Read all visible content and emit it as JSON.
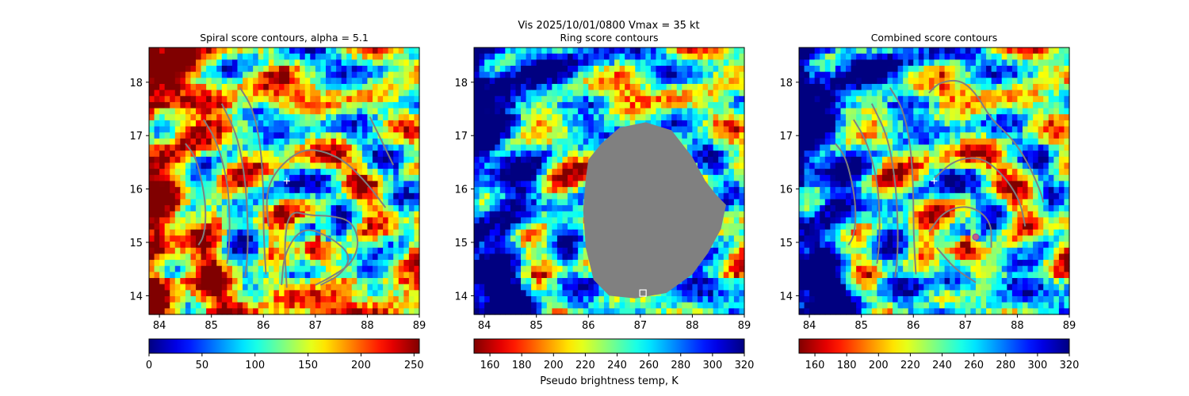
{
  "figure": {
    "title": "Vis  2025/10/01/0800    Vmax = 35 kt",
    "colormap": "jet"
  },
  "chart_data": [
    {
      "type": "heatmap",
      "title": "Spiral score contours, alpha =  5.1",
      "xlim": [
        83.8,
        89.0
      ],
      "ylim": [
        13.65,
        18.65
      ],
      "xticks": [
        "84",
        "85",
        "86",
        "87",
        "88",
        "89"
      ],
      "yticks": [
        "14",
        "15",
        "16",
        "17",
        "18"
      ],
      "xtick_values": [
        84,
        85,
        86,
        87,
        88,
        89
      ],
      "ytick_values": [
        14,
        15,
        16,
        17,
        18
      ],
      "colormap_reversed": false,
      "colorbar": {
        "range": [
          0,
          255
        ],
        "ticks": [
          "0",
          "50",
          "100",
          "150",
          "200",
          "250"
        ],
        "tick_values": [
          0,
          50,
          100,
          150,
          200,
          250
        ],
        "label": ""
      },
      "contour_color": "#808080",
      "contours": [
        [
          [
            84.5,
            16.85
          ],
          [
            84.7,
            16.6
          ],
          [
            84.85,
            16.0
          ],
          [
            84.9,
            15.5
          ],
          [
            84.85,
            15.1
          ],
          [
            84.75,
            14.95
          ]
        ],
        [
          [
            84.85,
            17.3
          ],
          [
            85.1,
            16.9
          ],
          [
            85.3,
            16.2
          ],
          [
            85.35,
            15.6
          ],
          [
            85.35,
            15.0
          ],
          [
            85.3,
            14.6
          ]
        ],
        [
          [
            85.2,
            17.6
          ],
          [
            85.5,
            17.0
          ],
          [
            85.65,
            16.2
          ],
          [
            85.7,
            15.4
          ],
          [
            85.7,
            14.8
          ],
          [
            85.65,
            14.35
          ]
        ],
        [
          [
            85.55,
            17.9
          ],
          [
            85.8,
            17.5
          ],
          [
            85.95,
            16.8
          ],
          [
            86.0,
            16.0
          ],
          [
            86.0,
            15.2
          ],
          [
            86.05,
            14.4
          ]
        ],
        [
          [
            86.1,
            15.3
          ],
          [
            86.05,
            15.8
          ],
          [
            86.15,
            16.2
          ],
          [
            86.45,
            16.55
          ],
          [
            86.8,
            16.75
          ],
          [
            87.2,
            16.7
          ],
          [
            87.6,
            16.5
          ],
          [
            88.0,
            16.1
          ],
          [
            88.35,
            15.65
          ]
        ],
        [
          [
            86.45,
            14.15
          ],
          [
            86.4,
            15.0
          ],
          [
            86.5,
            15.6
          ],
          [
            86.9,
            15.5
          ],
          [
            87.3,
            15.5
          ],
          [
            87.7,
            15.4
          ],
          [
            87.85,
            15.0
          ],
          [
            87.7,
            14.6
          ],
          [
            87.3,
            14.35
          ],
          [
            87.0,
            14.2
          ]
        ],
        [
          [
            86.35,
            14.2
          ],
          [
            86.4,
            14.8
          ],
          [
            86.75,
            15.3
          ],
          [
            87.3,
            15.1
          ],
          [
            87.7,
            14.75
          ],
          [
            87.5,
            14.4
          ],
          [
            87.1,
            14.2
          ]
        ],
        [
          [
            88.05,
            17.35
          ],
          [
            88.2,
            17.05
          ],
          [
            88.35,
            16.75
          ],
          [
            88.5,
            16.45
          ]
        ]
      ],
      "markers": [
        {
          "symbol": "plus",
          "x": 86.45,
          "y": 16.15,
          "color": "#ffffff"
        }
      ]
    },
    {
      "type": "heatmap",
      "title": "Ring score contours",
      "xlim": [
        83.8,
        89.0
      ],
      "ylim": [
        13.65,
        18.65
      ],
      "xticks": [
        "84",
        "85",
        "86",
        "87",
        "88",
        "89"
      ],
      "yticks": [
        "14",
        "15",
        "16",
        "17",
        "18"
      ],
      "xtick_values": [
        84,
        85,
        86,
        87,
        88,
        89
      ],
      "ytick_values": [
        14,
        15,
        16,
        17,
        18
      ],
      "colormap_reversed": true,
      "colorbar": {
        "range": [
          150,
          320
        ],
        "ticks": [
          "160",
          "180",
          "200",
          "220",
          "240",
          "260",
          "280",
          "300",
          "320"
        ],
        "tick_values": [
          160,
          180,
          200,
          220,
          240,
          260,
          280,
          300,
          320
        ],
        "label": "Pseudo brightness temp, K"
      },
      "mask": {
        "color": "#808080",
        "polygon": [
          [
            86.0,
            16.55
          ],
          [
            86.25,
            16.85
          ],
          [
            86.6,
            17.15
          ],
          [
            87.1,
            17.25
          ],
          [
            87.6,
            17.1
          ],
          [
            88.0,
            16.6
          ],
          [
            88.25,
            16.15
          ],
          [
            88.45,
            15.9
          ],
          [
            88.65,
            15.7
          ],
          [
            88.55,
            15.25
          ],
          [
            88.3,
            14.8
          ],
          [
            88.0,
            14.4
          ],
          [
            87.5,
            14.05
          ],
          [
            86.9,
            13.95
          ],
          [
            86.4,
            14.0
          ],
          [
            86.1,
            14.3
          ],
          [
            85.95,
            14.9
          ],
          [
            85.9,
            15.6
          ],
          [
            85.95,
            16.2
          ]
        ]
      },
      "markers": [
        {
          "symbol": "square",
          "x": 87.05,
          "y": 14.05,
          "color": "#ffffff"
        }
      ]
    },
    {
      "type": "heatmap",
      "title": "Combined score contours",
      "xlim": [
        83.8,
        89.0
      ],
      "ylim": [
        13.65,
        18.65
      ],
      "xticks": [
        "84",
        "85",
        "86",
        "87",
        "88",
        "89"
      ],
      "yticks": [
        "14",
        "15",
        "16",
        "17",
        "18"
      ],
      "xtick_values": [
        84,
        85,
        86,
        87,
        88,
        89
      ],
      "ytick_values": [
        14,
        15,
        16,
        17,
        18
      ],
      "colormap_reversed": true,
      "colorbar": {
        "range": [
          150,
          320
        ],
        "ticks": [
          "160",
          "180",
          "200",
          "220",
          "240",
          "260",
          "280",
          "300",
          "320"
        ],
        "tick_values": [
          160,
          180,
          200,
          220,
          240,
          260,
          280,
          300,
          320
        ],
        "label": ""
      },
      "contour_color": "#808080",
      "contours": [
        [
          [
            84.5,
            16.85
          ],
          [
            84.7,
            16.6
          ],
          [
            84.85,
            16.0
          ],
          [
            84.9,
            15.5
          ],
          [
            84.85,
            15.1
          ],
          [
            84.75,
            14.95
          ]
        ],
        [
          [
            84.85,
            17.3
          ],
          [
            85.1,
            16.9
          ],
          [
            85.3,
            16.2
          ],
          [
            85.35,
            15.6
          ],
          [
            85.35,
            15.0
          ],
          [
            85.3,
            14.6
          ]
        ],
        [
          [
            85.2,
            17.6
          ],
          [
            85.5,
            17.0
          ],
          [
            85.65,
            16.2
          ],
          [
            85.7,
            15.4
          ],
          [
            85.7,
            14.8
          ],
          [
            85.65,
            14.35
          ]
        ],
        [
          [
            85.55,
            17.9
          ],
          [
            85.8,
            17.5
          ],
          [
            85.95,
            16.8
          ],
          [
            86.0,
            16.0
          ],
          [
            86.0,
            15.2
          ],
          [
            86.05,
            14.4
          ]
        ],
        [
          [
            86.4,
            16.2
          ],
          [
            86.8,
            16.55
          ],
          [
            87.3,
            16.6
          ],
          [
            87.7,
            16.3
          ],
          [
            88.05,
            15.8
          ],
          [
            88.15,
            15.3
          ]
        ],
        [
          [
            86.3,
            15.2
          ],
          [
            86.6,
            15.6
          ],
          [
            87.1,
            15.7
          ],
          [
            87.5,
            15.4
          ],
          [
            87.5,
            14.9
          ]
        ],
        [
          [
            86.45,
            14.9
          ],
          [
            86.8,
            14.5
          ],
          [
            87.2,
            14.25
          ]
        ],
        [
          [
            86.3,
            17.8
          ],
          [
            86.5,
            18.0
          ],
          [
            86.9,
            18.05
          ],
          [
            87.2,
            17.8
          ],
          [
            87.5,
            17.3
          ],
          [
            87.9,
            16.95
          ],
          [
            88.2,
            16.5
          ],
          [
            88.45,
            15.95
          ],
          [
            88.5,
            15.75
          ]
        ]
      ],
      "markers": [
        {
          "symbol": "plus",
          "x": 86.4,
          "y": 16.15,
          "color": "#ffffff"
        },
        {
          "symbol": "circle",
          "x": 87.2,
          "y": 15.1,
          "color": "#c06080"
        }
      ]
    }
  ]
}
